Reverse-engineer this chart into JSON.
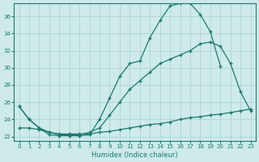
{
  "xlabel": "Humidex (Indice chaleur)",
  "bg_color": "#ceeaea",
  "grid_color": "#aad0d0",
  "line_color": "#1a7a6e",
  "xlim": [
    -0.5,
    23.5
  ],
  "ylim": [
    21.5,
    37.5
  ],
  "xticks": [
    0,
    1,
    2,
    3,
    4,
    5,
    6,
    7,
    8,
    9,
    10,
    11,
    12,
    13,
    14,
    15,
    16,
    17,
    18,
    19,
    20,
    21,
    22,
    23
  ],
  "yticks": [
    22,
    24,
    26,
    28,
    30,
    32,
    34,
    36
  ],
  "series1_x": [
    0,
    1,
    2,
    3,
    4,
    5,
    6,
    7,
    8,
    9,
    10,
    11,
    12,
    13,
    14,
    15,
    16,
    17,
    18,
    19,
    20
  ],
  "series1_y": [
    25.5,
    24.0,
    23.0,
    22.2,
    22.1,
    22.1,
    22.1,
    22.2,
    24.0,
    26.5,
    29.0,
    30.5,
    30.8,
    33.5,
    35.5,
    37.2,
    37.5,
    37.5,
    36.2,
    34.2,
    30.2
  ],
  "series2_x": [
    0,
    1,
    2,
    3,
    4,
    5,
    6,
    7,
    8,
    9,
    10,
    11,
    12,
    13,
    14,
    15,
    16,
    17,
    18,
    19,
    20,
    21,
    22,
    23
  ],
  "series2_y": [
    25.5,
    24.0,
    23.0,
    22.5,
    22.2,
    22.2,
    22.2,
    22.5,
    23.0,
    24.5,
    26.0,
    27.5,
    28.5,
    29.5,
    30.5,
    31.0,
    31.5,
    32.0,
    32.8,
    33.0,
    32.5,
    30.5,
    27.2,
    25.0
  ],
  "series3_x": [
    0,
    1,
    2,
    3,
    4,
    5,
    6,
    7,
    8,
    9,
    10,
    11,
    12,
    13,
    14,
    15,
    16,
    17,
    18,
    19,
    20,
    21,
    22,
    23
  ],
  "series3_y": [
    23.0,
    23.0,
    22.8,
    22.5,
    22.3,
    22.3,
    22.3,
    22.3,
    22.5,
    22.6,
    22.8,
    23.0,
    23.2,
    23.4,
    23.5,
    23.7,
    24.0,
    24.2,
    24.3,
    24.5,
    24.6,
    24.8,
    25.0,
    25.2
  ]
}
